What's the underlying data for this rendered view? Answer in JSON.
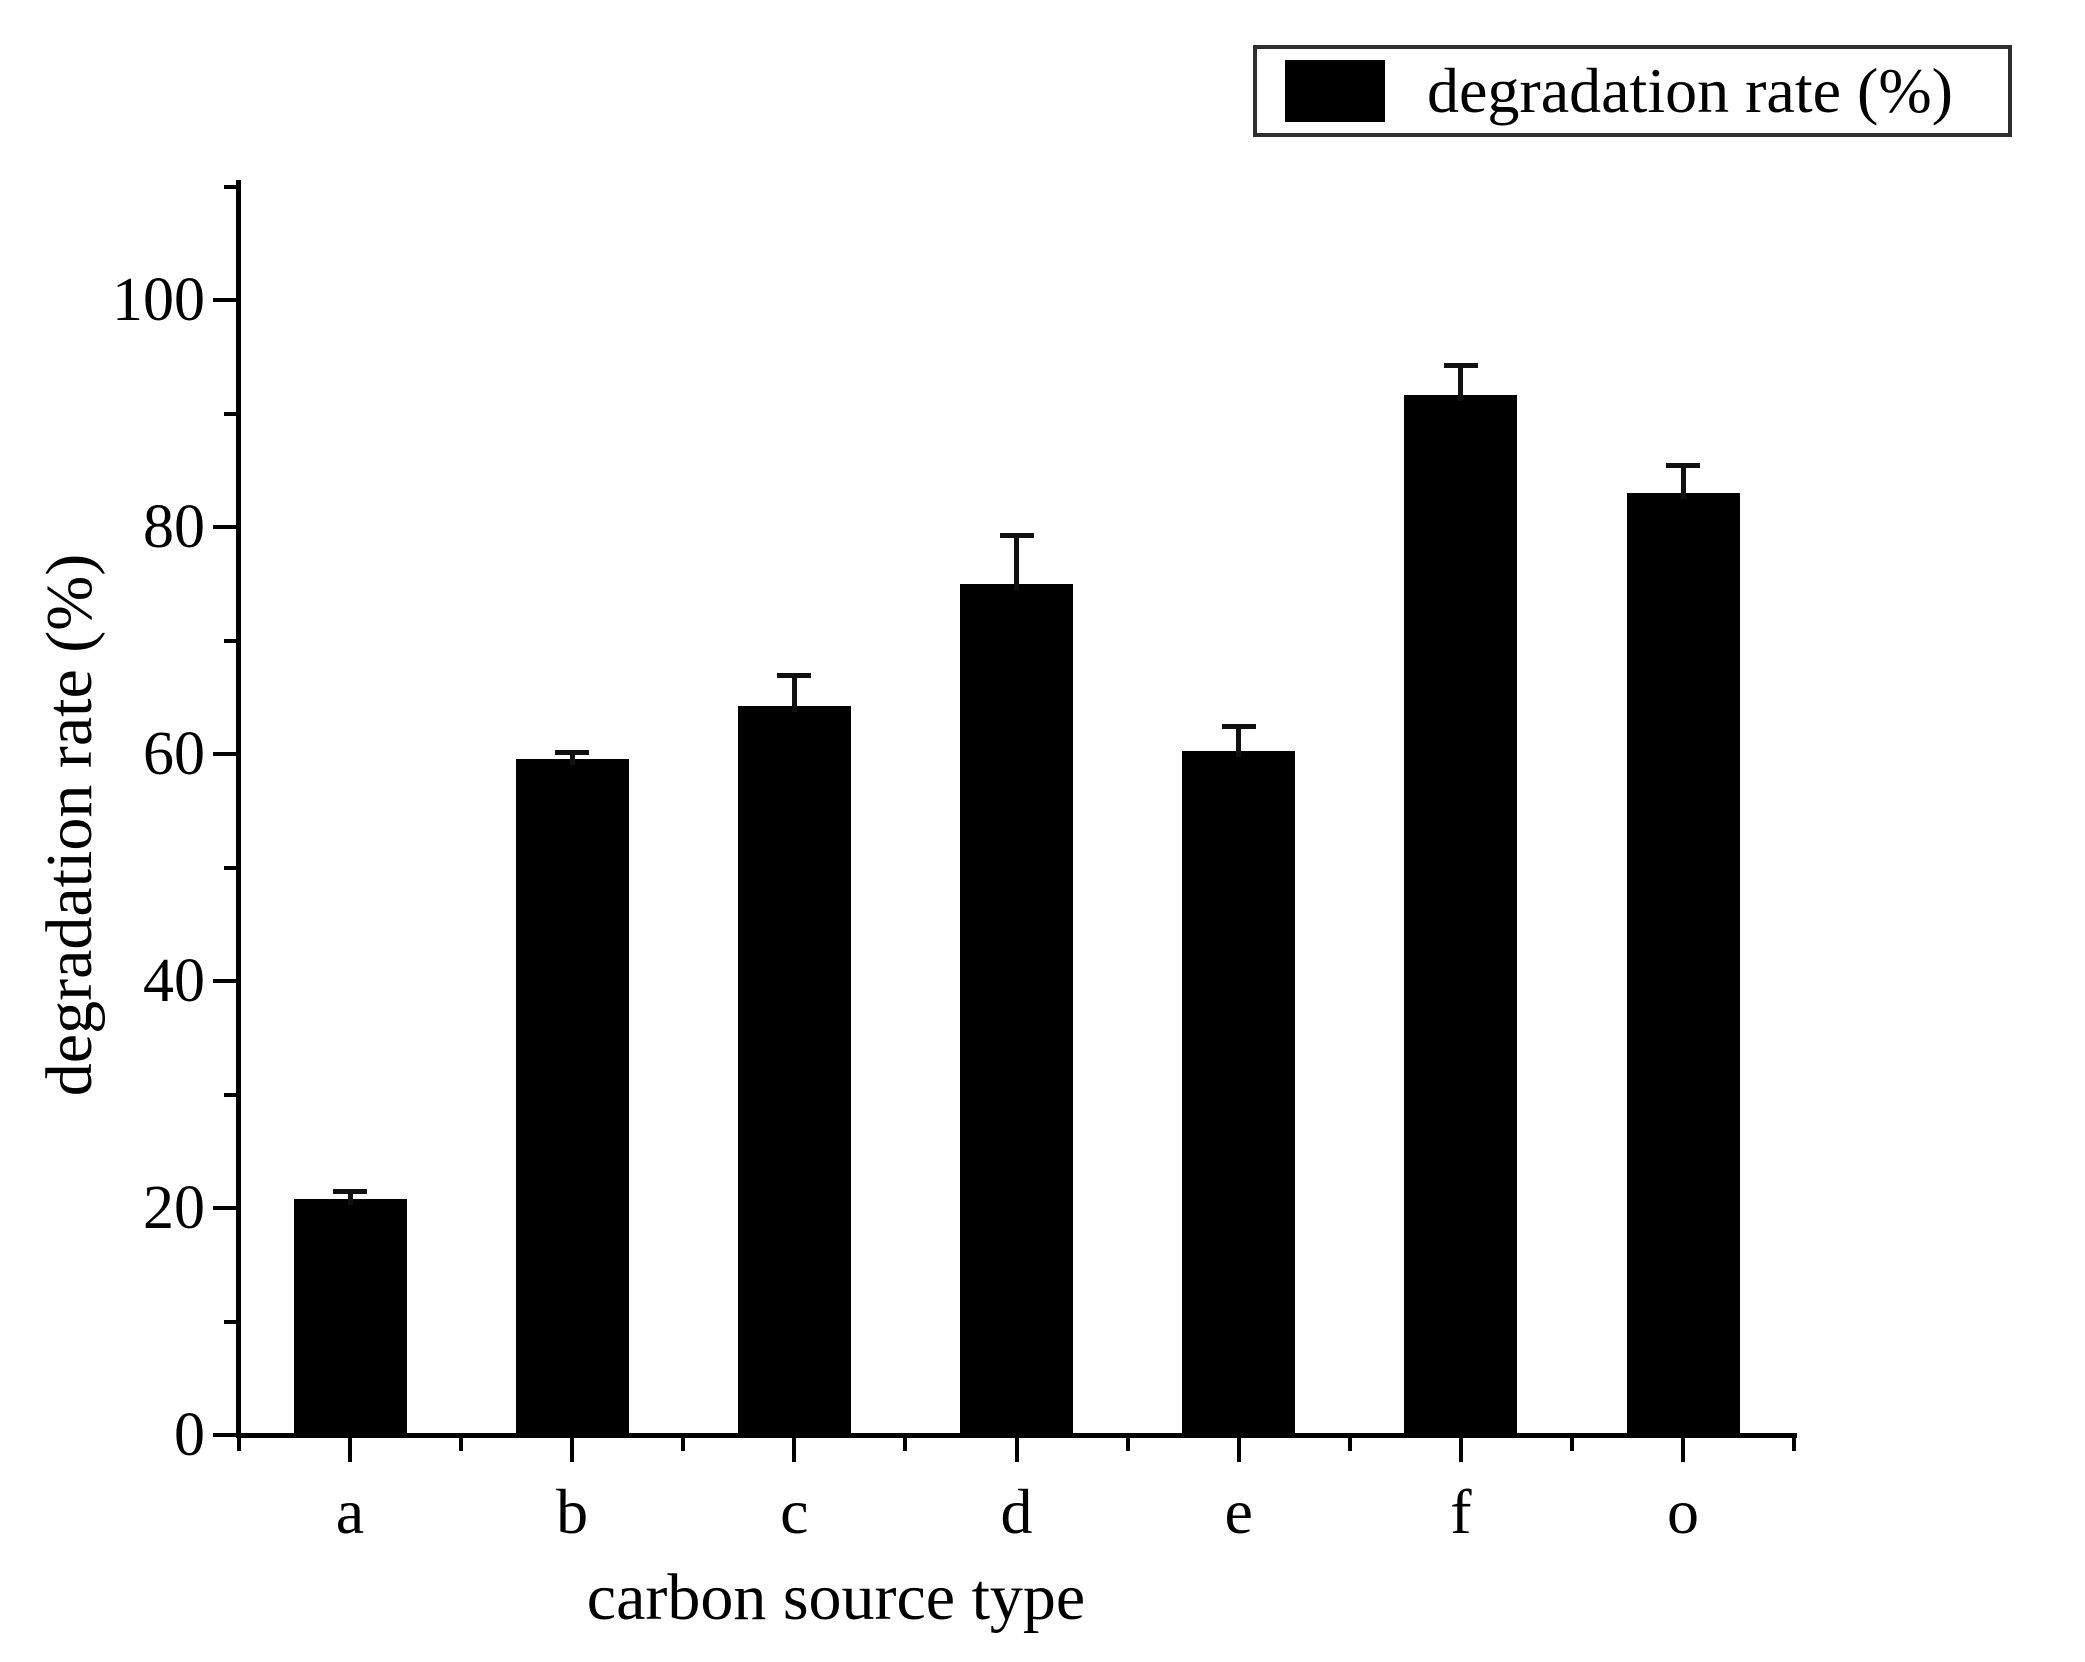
{
  "figure": {
    "background": "#ffffff",
    "legend": {
      "label": "degradation rate (%)",
      "swatch_color": "#000000",
      "position": "top-right",
      "border_color": "#2f2f2f"
    },
    "y_axis": {
      "title": "degradation rate (%)",
      "tick_labels": [
        "0",
        "20",
        "40",
        "60",
        "80",
        "100"
      ],
      "minor_tick_values": [
        10,
        30,
        50,
        70,
        90,
        110
      ],
      "range": [
        0,
        110
      ]
    },
    "x_axis": {
      "title": "carbon source type",
      "tick_labels": [
        "a",
        "b",
        "c",
        "d",
        "e",
        "f",
        "o"
      ]
    }
  },
  "chart_data": {
    "type": "bar",
    "title": "",
    "categories": [
      "a",
      "b",
      "c",
      "d",
      "e",
      "f",
      "o"
    ],
    "series": [
      {
        "name": "degradation rate (%)",
        "values": [
          20.8,
          59.6,
          64.2,
          75.0,
          60.3,
          91.6,
          83.0
        ],
        "errors_plus": [
          0.7,
          0.6,
          2.8,
          4.3,
          2.2,
          2.7,
          2.5
        ]
      }
    ],
    "xlabel": "carbon source type",
    "ylabel": "degradation rate (%)",
    "ylim": [
      0,
      110
    ],
    "yticks": [
      0,
      20,
      40,
      60,
      80,
      100
    ],
    "minor_yticks": [
      10,
      30,
      50,
      70,
      90,
      110
    ],
    "bar_color": "#000000",
    "error_bar_color": "#111111",
    "grid": false,
    "legend": {
      "label": "degradation rate (%)",
      "position": "top-right",
      "border": true
    }
  }
}
